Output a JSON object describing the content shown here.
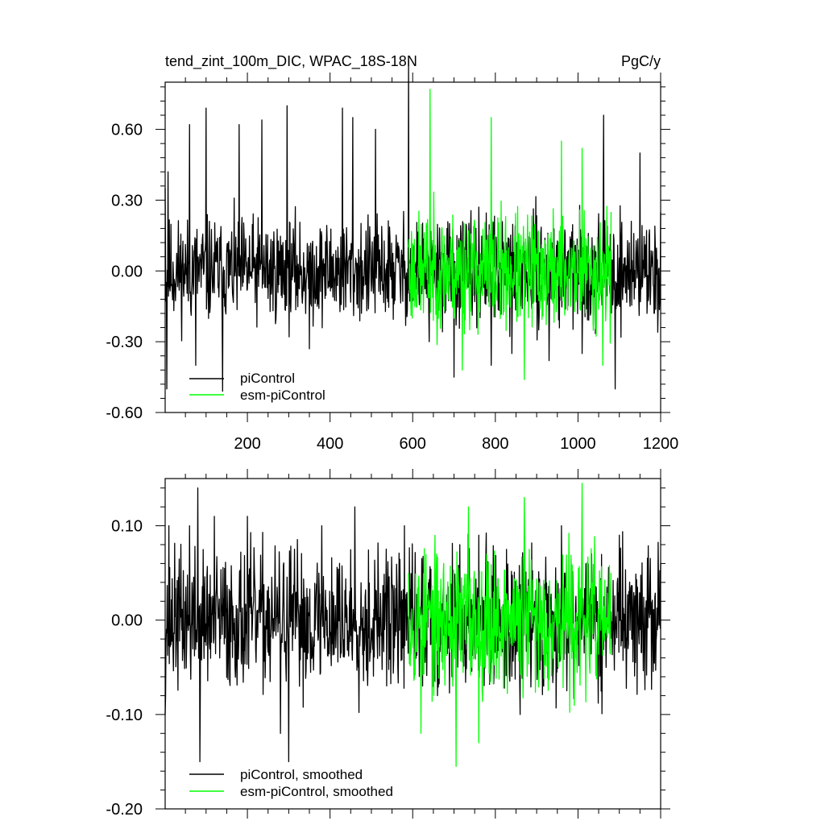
{
  "chart_data": [
    {
      "type": "line",
      "title": "tend_zint_100m_DIC, WPAC_18S-18N",
      "units": "PgC/y",
      "xlim": [
        1,
        1200
      ],
      "ylim": [
        -0.6,
        0.8
      ],
      "xticks": [
        200,
        400,
        600,
        800,
        1000,
        1200
      ],
      "xtick_labels": [
        "200",
        "400",
        "600",
        "800",
        "1000",
        "1200"
      ],
      "yticks": [
        -0.6,
        -0.3,
        0.0,
        0.3,
        0.6
      ],
      "ytick_labels": [
        "-0.60",
        "-0.30",
        "0.00",
        "0.30",
        "0.60"
      ],
      "grid": false,
      "legend_position": "bottom-left",
      "series": [
        {
          "name": "piControl",
          "color": "#000000",
          "note": "monthly series spanning x=1 to 1200",
          "anchor_x": [
            1,
            5,
            8,
            60,
            75,
            100,
            140,
            180,
            235,
            296,
            350,
            430,
            455,
            510,
            590,
            640,
            700,
            790,
            840,
            930,
            1010,
            1062,
            1090,
            1150,
            1200
          ],
          "anchor_y": [
            0.35,
            -0.5,
            0.42,
            0.62,
            -0.4,
            0.69,
            -0.51,
            0.62,
            0.64,
            0.7,
            -0.33,
            0.69,
            0.65,
            0.6,
            0.89,
            -0.3,
            -0.45,
            -0.4,
            -0.35,
            -0.38,
            -0.35,
            0.66,
            -0.5,
            0.5,
            0.25
          ],
          "amplitude_y": [
            0.18,
            0.18,
            0.18,
            0.18,
            0.18,
            0.18,
            0.18,
            0.18,
            0.18,
            0.18,
            0.18,
            0.18,
            0.18,
            0.18,
            0.18,
            0.18,
            0.18,
            0.18,
            0.18,
            0.18,
            0.18,
            0.18,
            0.18,
            0.18,
            0.18
          ],
          "seed": 11
        },
        {
          "name": "esm-piControl",
          "color": "#00ff00",
          "note": "monthly series spanning x=590 to 1080",
          "anchor_x": [
            590,
            642,
            720,
            790,
            870,
            960,
            1010,
            1060,
            1080
          ],
          "anchor_y": [
            0.1,
            0.77,
            -0.42,
            0.65,
            -0.46,
            0.55,
            0.52,
            -0.4,
            0.25
          ],
          "amplitude_y": [
            0.2,
            0.2,
            0.2,
            0.2,
            0.2,
            0.2,
            0.2,
            0.2,
            0.2
          ],
          "seed": 23
        }
      ]
    },
    {
      "type": "line",
      "title": "",
      "xlim": [
        1,
        1200
      ],
      "ylim": [
        -0.2,
        0.15
      ],
      "xticks": [
        200,
        400,
        600,
        800,
        1000,
        1200
      ],
      "xtick_labels": [],
      "yticks": [
        -0.2,
        -0.1,
        0.0,
        0.1
      ],
      "ytick_labels": [
        "-0.20",
        "-0.10",
        "0.00",
        "0.10"
      ],
      "grid": false,
      "legend_position": "bottom-left",
      "series": [
        {
          "name": "piControl, smoothed",
          "color": "#000000",
          "note": "smoothed series spanning x=1 to 1200",
          "anchor_x": [
            1,
            10,
            60,
            80,
            85,
            120,
            200,
            280,
            300,
            380,
            460,
            580,
            660,
            760,
            860,
            960,
            1100,
            1200
          ],
          "anchor_y": [
            -0.1,
            0.1,
            0.1,
            0.14,
            -0.15,
            0.11,
            0.11,
            -0.12,
            -0.15,
            0.1,
            0.12,
            0.1,
            -0.08,
            0.09,
            -0.1,
            0.1,
            0.09,
            0.06
          ],
          "amplitude_y": [
            0.06,
            0.06,
            0.06,
            0.06,
            0.06,
            0.06,
            0.06,
            0.06,
            0.06,
            0.06,
            0.06,
            0.06,
            0.06,
            0.06,
            0.06,
            0.06,
            0.06,
            0.06
          ],
          "seed": 37
        },
        {
          "name": "esm-piControl, smoothed",
          "color": "#00ff00",
          "note": "smoothed series spanning x=590 to 1080",
          "anchor_x": [
            590,
            620,
            705,
            735,
            760,
            870,
            1010,
            1080
          ],
          "anchor_y": [
            0.05,
            -0.12,
            -0.155,
            0.12,
            -0.13,
            0.13,
            0.145,
            0.05
          ],
          "amplitude_y": [
            0.06,
            0.06,
            0.06,
            0.06,
            0.06,
            0.06,
            0.06,
            0.06
          ],
          "seed": 53
        }
      ]
    }
  ]
}
